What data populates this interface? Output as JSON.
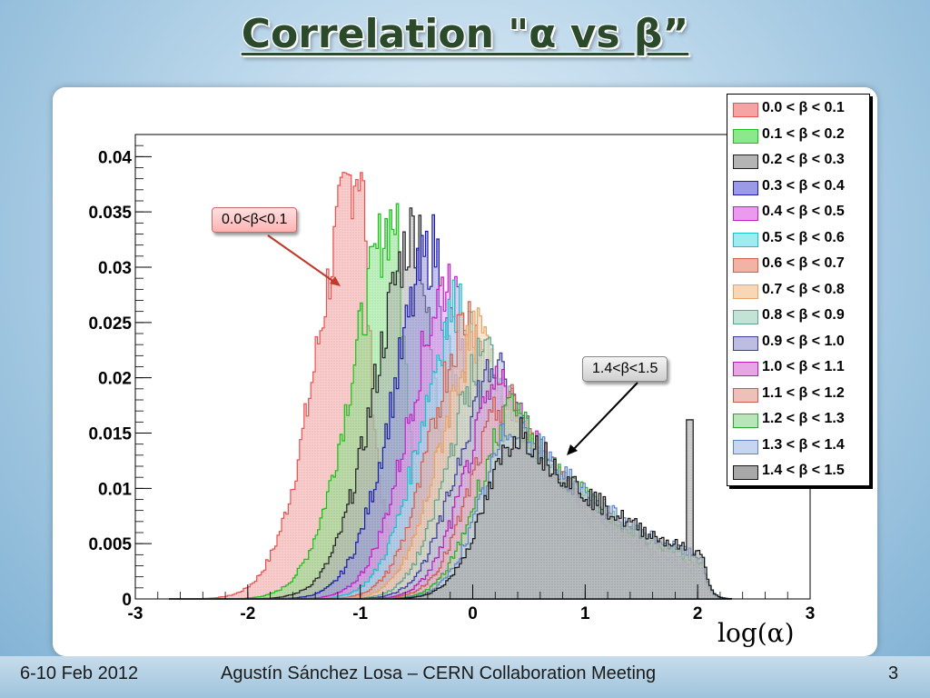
{
  "slide": {
    "title": "Correlation \"α vs β”",
    "footer_date": "6-10 Feb 2012",
    "footer_author": "Agustín Sánchez Losa – CERN Collaboration Meeting",
    "footer_page": "3",
    "x_unit_label": "log(α)",
    "callout_low": "0.0<β<0.1",
    "callout_high": "1.4<β<1.5"
  },
  "chart_data": {
    "type": "histogram",
    "xlabel": "log(α)",
    "ylabel": "",
    "xlim": [
      -3,
      3
    ],
    "ylim": [
      0,
      0.042
    ],
    "x_ticks": [
      "-3",
      "-2",
      "-1",
      "0",
      "1",
      "2",
      "3"
    ],
    "y_ticks": [
      "0",
      "0.005",
      "0.01",
      "0.015",
      "0.02",
      "0.025",
      "0.03",
      "0.035",
      "0.04"
    ],
    "legend_position": "top-right",
    "series": [
      {
        "name": "0.0 < β < 0.1",
        "color": "#e8514f",
        "fill": "#f7a3a3",
        "peak_x": -0.98,
        "peak_y": 0.0395,
        "left_w": 0.38,
        "right_w": 0.12
      },
      {
        "name": "0.1 < β < 0.2",
        "color": "#18c018",
        "fill": "#8be88b",
        "peak_x": -0.68,
        "peak_y": 0.0345,
        "left_w": 0.38,
        "right_w": 0.17
      },
      {
        "name": "0.2 < β < 0.3",
        "color": "#202020",
        "fill": "#b4b4b4",
        "peak_x": -0.47,
        "peak_y": 0.0338,
        "left_w": 0.38,
        "right_w": 0.24
      },
      {
        "name": "0.3 < β < 0.4",
        "color": "#1b1baa",
        "fill": "#9a9ae6",
        "peak_x": -0.32,
        "peak_y": 0.0318,
        "left_w": 0.37,
        "right_w": 0.32
      },
      {
        "name": "0.4 < β < 0.5",
        "color": "#c21fc7",
        "fill": "#ec9aef",
        "peak_x": -0.18,
        "peak_y": 0.029,
        "left_w": 0.36,
        "right_w": 0.4
      },
      {
        "name": "0.5 < β < 0.6",
        "color": "#18c3c8",
        "fill": "#9eecef",
        "peak_x": -0.08,
        "peak_y": 0.0272,
        "left_w": 0.36,
        "right_w": 0.48
      },
      {
        "name": "0.6 < β < 0.7",
        "color": "#d2614c",
        "fill": "#f2b2a4",
        "peak_x": 0.0,
        "peak_y": 0.0258,
        "left_w": 0.35,
        "right_w": 0.56
      },
      {
        "name": "0.7 < β < 0.8",
        "color": "#e8a261",
        "fill": "#f7d7b6",
        "peak_x": 0.08,
        "peak_y": 0.024,
        "left_w": 0.35,
        "right_w": 0.64
      },
      {
        "name": "0.8 < β < 0.9",
        "color": "#5fa38a",
        "fill": "#c3e3d7",
        "peak_x": 0.15,
        "peak_y": 0.0225,
        "left_w": 0.34,
        "right_w": 0.72
      },
      {
        "name": "0.9 < β < 1.0",
        "color": "#3c3c96",
        "fill": "#bdbde2",
        "peak_x": 0.22,
        "peak_y": 0.021,
        "left_w": 0.34,
        "right_w": 0.8
      },
      {
        "name": "1.0 < β < 1.1",
        "color": "#b41eb4",
        "fill": "#e6a6e6",
        "peak_x": 0.28,
        "peak_y": 0.0195,
        "left_w": 0.33,
        "right_w": 0.88
      },
      {
        "name": "1.1 < β < 1.2",
        "color": "#c85a50",
        "fill": "#eec0ba",
        "peak_x": 0.33,
        "peak_y": 0.018,
        "left_w": 0.33,
        "right_w": 0.96
      },
      {
        "name": "1.2 < β < 1.3",
        "color": "#28aa28",
        "fill": "#b8e6b8",
        "peak_x": 0.38,
        "peak_y": 0.0168,
        "left_w": 0.32,
        "right_w": 1.04
      },
      {
        "name": "1.3 < β < 1.4",
        "color": "#5a82c8",
        "fill": "#c6d6f0",
        "peak_x": 0.42,
        "peak_y": 0.016,
        "left_w": 0.32,
        "right_w": 1.12
      },
      {
        "name": "1.4 < β < 1.5",
        "color": "#141414",
        "fill": "#a8a8a8",
        "peak_x": 0.45,
        "peak_y": 0.0152,
        "left_w": 0.32,
        "right_w": 1.2
      }
    ]
  }
}
